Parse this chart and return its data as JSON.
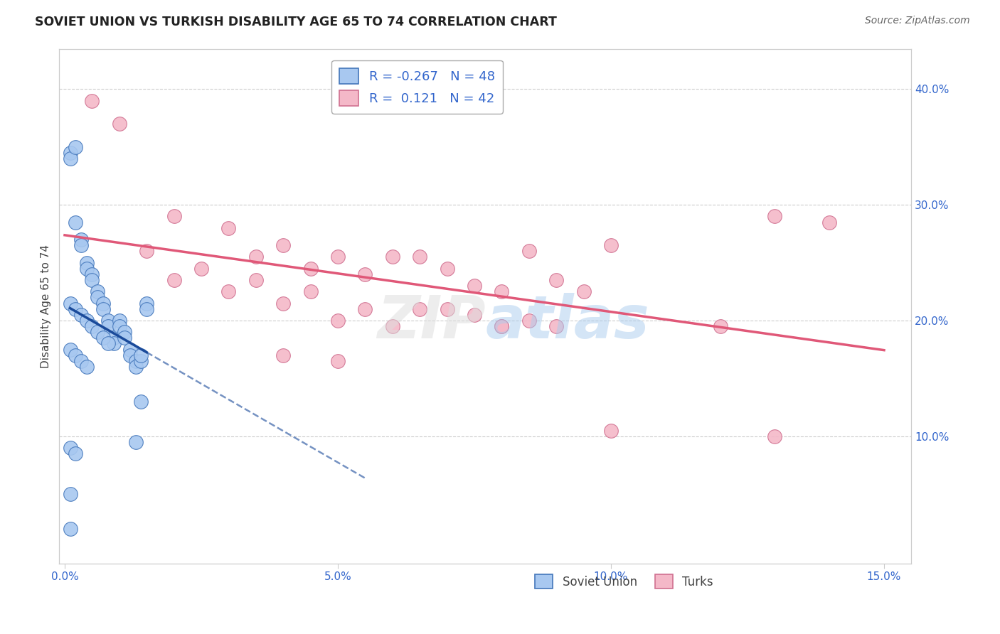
{
  "title": "SOVIET UNION VS TURKISH DISABILITY AGE 65 TO 74 CORRELATION CHART",
  "source": "Source: ZipAtlas.com",
  "ylabel": "Disability Age 65 to 74",
  "xlim": [
    -0.001,
    0.155
  ],
  "ylim": [
    -0.01,
    0.435
  ],
  "xticks": [
    0.0,
    0.05,
    0.1,
    0.15
  ],
  "xticklabels": [
    "0.0%",
    "5.0%",
    "10.0%",
    "15.0%"
  ],
  "yticks_right": [
    0.1,
    0.2,
    0.3,
    0.4
  ],
  "yticklabels_right": [
    "10.0%",
    "20.0%",
    "30.0%",
    "40.0%"
  ],
  "soviet_R": -0.267,
  "soviet_N": 48,
  "turk_R": 0.121,
  "turk_N": 42,
  "soviet_color": "#A8C8F0",
  "soviet_edge_color": "#4477BB",
  "turk_color": "#F4B8C8",
  "turk_edge_color": "#D07090",
  "soviet_line_color": "#1A4A9A",
  "turk_line_color": "#E05878",
  "legend_soviet_label": "Soviet Union",
  "legend_turk_label": "Turks",
  "watermark": "ZIPatlas",
  "grid_color": "#CCCCCC",
  "tick_color": "#3366CC",
  "soviet_x": [
    0.001,
    0.001,
    0.002,
    0.002,
    0.003,
    0.003,
    0.004,
    0.004,
    0.005,
    0.005,
    0.006,
    0.006,
    0.007,
    0.007,
    0.008,
    0.008,
    0.009,
    0.009,
    0.01,
    0.01,
    0.011,
    0.011,
    0.012,
    0.012,
    0.013,
    0.013,
    0.014,
    0.014,
    0.015,
    0.015,
    0.001,
    0.002,
    0.003,
    0.004,
    0.005,
    0.006,
    0.007,
    0.008,
    0.001,
    0.002,
    0.003,
    0.004,
    0.014,
    0.013,
    0.001,
    0.002,
    0.001,
    0.001
  ],
  "soviet_y": [
    0.345,
    0.34,
    0.35,
    0.285,
    0.27,
    0.265,
    0.25,
    0.245,
    0.24,
    0.235,
    0.225,
    0.22,
    0.215,
    0.21,
    0.2,
    0.195,
    0.185,
    0.18,
    0.2,
    0.195,
    0.19,
    0.185,
    0.175,
    0.17,
    0.165,
    0.16,
    0.165,
    0.17,
    0.215,
    0.21,
    0.215,
    0.21,
    0.205,
    0.2,
    0.195,
    0.19,
    0.185,
    0.18,
    0.175,
    0.17,
    0.165,
    0.16,
    0.13,
    0.095,
    0.09,
    0.085,
    0.05,
    0.02
  ],
  "turk_x": [
    0.005,
    0.01,
    0.015,
    0.02,
    0.03,
    0.035,
    0.04,
    0.045,
    0.05,
    0.055,
    0.06,
    0.065,
    0.07,
    0.075,
    0.08,
    0.085,
    0.09,
    0.095,
    0.1,
    0.12,
    0.13,
    0.14,
    0.02,
    0.025,
    0.03,
    0.035,
    0.04,
    0.045,
    0.05,
    0.055,
    0.06,
    0.065,
    0.07,
    0.075,
    0.08,
    0.085,
    0.09,
    0.04,
    0.05,
    0.08,
    0.1,
    0.13
  ],
  "turk_y": [
    0.39,
    0.37,
    0.26,
    0.29,
    0.28,
    0.255,
    0.265,
    0.245,
    0.255,
    0.24,
    0.255,
    0.255,
    0.245,
    0.23,
    0.225,
    0.26,
    0.235,
    0.225,
    0.265,
    0.195,
    0.29,
    0.285,
    0.235,
    0.245,
    0.225,
    0.235,
    0.215,
    0.225,
    0.2,
    0.21,
    0.195,
    0.21,
    0.21,
    0.205,
    0.195,
    0.2,
    0.195,
    0.17,
    0.165,
    0.195,
    0.105,
    0.1
  ]
}
